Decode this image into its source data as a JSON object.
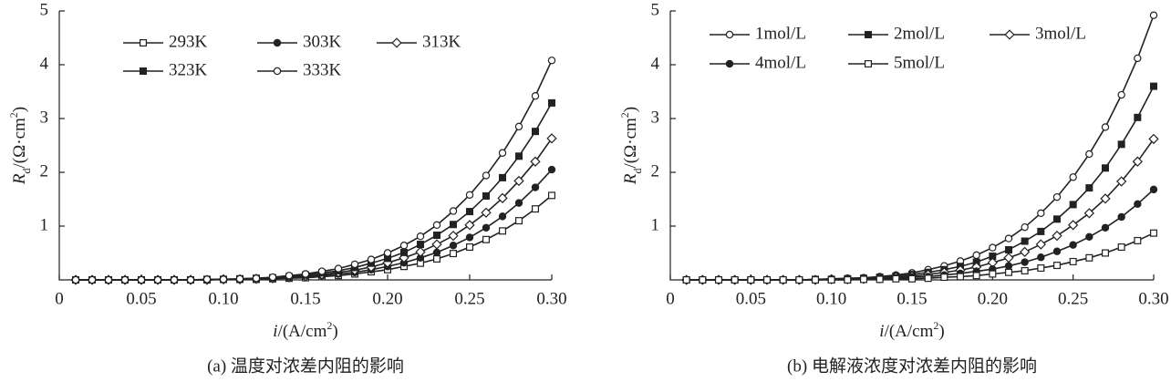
{
  "chart_data": [
    {
      "type": "line",
      "caption": "(a) 温度对浓差内阻的影响",
      "xlabel": [
        "i",
        "/(A/cm",
        "2",
        ")"
      ],
      "ylabel": [
        "R",
        "d",
        "/(Ω·cm",
        "2",
        ")"
      ],
      "x": [
        0.01,
        0.02,
        0.03,
        0.04,
        0.05,
        0.06,
        0.07,
        0.08,
        0.09,
        0.1,
        0.11,
        0.12,
        0.13,
        0.14,
        0.15,
        0.16,
        0.17,
        0.18,
        0.19,
        0.2,
        0.21,
        0.22,
        0.23,
        0.24,
        0.25,
        0.26,
        0.27,
        0.28,
        0.29,
        0.3
      ],
      "xlim": [
        0,
        0.3
      ],
      "xticks": [
        0,
        0.05,
        {
          "value": 0.1,
          "label": "0.10"
        },
        0.15,
        {
          "value": 0.2,
          "label": "0.20"
        },
        0.25,
        {
          "value": 0.3,
          "label": "0.30"
        }
      ],
      "ylim": [
        0,
        5
      ],
      "yticks": [
        1,
        2,
        3,
        4,
        5
      ],
      "legend_columns": 3,
      "series": [
        {
          "name": "293K",
          "color": "#222222",
          "marker": "square",
          "filled": false,
          "values": [
            0,
            0,
            0,
            0,
            0,
            0,
            0,
            0,
            0,
            0.01,
            0.01,
            0.01,
            0.02,
            0.03,
            0.04,
            0.06,
            0.08,
            0.11,
            0.15,
            0.19,
            0.25,
            0.31,
            0.39,
            0.49,
            0.61,
            0.75,
            0.91,
            1.1,
            1.32,
            1.57
          ]
        },
        {
          "name": "303K",
          "color": "#222222",
          "marker": "circle",
          "filled": true,
          "values": [
            0,
            0,
            0,
            0,
            0,
            0,
            0,
            0,
            0,
            0.01,
            0.01,
            0.02,
            0.03,
            0.04,
            0.06,
            0.08,
            0.11,
            0.14,
            0.19,
            0.25,
            0.32,
            0.41,
            0.51,
            0.64,
            0.79,
            0.97,
            1.18,
            1.43,
            1.72,
            2.05
          ]
        },
        {
          "name": "313K",
          "color": "#222222",
          "marker": "diamond",
          "filled": false,
          "values": [
            0,
            0,
            0,
            0,
            0,
            0,
            0,
            0,
            0,
            0.01,
            0.01,
            0.02,
            0.03,
            0.05,
            0.07,
            0.1,
            0.14,
            0.18,
            0.24,
            0.32,
            0.41,
            0.52,
            0.66,
            0.82,
            1.02,
            1.25,
            1.52,
            1.84,
            2.2,
            2.63
          ]
        },
        {
          "name": "323K",
          "color": "#222222",
          "marker": "square",
          "filled": true,
          "values": [
            0,
            0,
            0,
            0,
            0,
            0,
            0,
            0,
            0.01,
            0.01,
            0.02,
            0.03,
            0.04,
            0.06,
            0.09,
            0.13,
            0.17,
            0.23,
            0.31,
            0.4,
            0.51,
            0.66,
            0.83,
            1.03,
            1.27,
            1.56,
            1.9,
            2.3,
            2.76,
            3.29
          ]
        },
        {
          "name": "333K",
          "color": "#222222",
          "marker": "circle",
          "filled": false,
          "values": [
            0,
            0,
            0,
            0,
            0,
            0,
            0,
            0,
            0.01,
            0.01,
            0.02,
            0.03,
            0.05,
            0.08,
            0.11,
            0.16,
            0.21,
            0.29,
            0.38,
            0.5,
            0.64,
            0.81,
            1.02,
            1.28,
            1.58,
            1.94,
            2.36,
            2.85,
            3.42,
            4.08
          ]
        }
      ]
    },
    {
      "type": "line",
      "caption": "(b) 电解液浓度对浓差内阻的影响",
      "xlabel": [
        "i",
        "/(A/cm",
        "2",
        ")"
      ],
      "ylabel": [
        "R",
        "d",
        "/(Ω·cm",
        "2",
        ")"
      ],
      "x": [
        0.01,
        0.02,
        0.03,
        0.04,
        0.05,
        0.06,
        0.07,
        0.08,
        0.09,
        0.1,
        0.11,
        0.12,
        0.13,
        0.14,
        0.15,
        0.16,
        0.17,
        0.18,
        0.19,
        0.2,
        0.21,
        0.22,
        0.23,
        0.24,
        0.25,
        0.26,
        0.27,
        0.28,
        0.29,
        0.3
      ],
      "xlim": [
        0,
        0.3
      ],
      "xticks": [
        0,
        0.05,
        {
          "value": 0.1,
          "label": "0.10"
        },
        0.15,
        {
          "value": 0.2,
          "label": "0.20"
        },
        0.25,
        {
          "value": 0.3,
          "label": "0.30"
        }
      ],
      "ylim": [
        0,
        5
      ],
      "yticks": [
        1,
        2,
        3,
        4,
        5
      ],
      "legend_columns": 3,
      "series": [
        {
          "name": "1mol/L",
          "color": "#222222",
          "marker": "circle",
          "filled": false,
          "values": [
            0,
            0,
            0,
            0,
            0,
            0,
            0,
            0,
            0.01,
            0.02,
            0.03,
            0.04,
            0.06,
            0.09,
            0.13,
            0.19,
            0.26,
            0.35,
            0.46,
            0.6,
            0.77,
            0.98,
            1.24,
            1.54,
            1.91,
            2.34,
            2.84,
            3.44,
            4.12,
            4.92
          ]
        },
        {
          "name": "2mol/L",
          "color": "#222222",
          "marker": "square",
          "filled": true,
          "values": [
            0,
            0,
            0,
            0,
            0,
            0,
            0,
            0,
            0.01,
            0.01,
            0.02,
            0.03,
            0.05,
            0.07,
            0.1,
            0.14,
            0.19,
            0.25,
            0.33,
            0.44,
            0.56,
            0.72,
            0.9,
            1.13,
            1.4,
            1.71,
            2.08,
            2.52,
            3.02,
            3.6
          ]
        },
        {
          "name": "3mol/L",
          "color": "#222222",
          "marker": "diamond",
          "filled": false,
          "values": [
            0,
            0,
            0,
            0,
            0,
            0,
            0,
            0,
            0,
            0.01,
            0.01,
            0.02,
            0.03,
            0.05,
            0.07,
            0.1,
            0.14,
            0.18,
            0.24,
            0.32,
            0.41,
            0.52,
            0.66,
            0.82,
            1.02,
            1.24,
            1.51,
            1.83,
            2.2,
            2.62
          ]
        },
        {
          "name": "4mol/L",
          "color": "#222222",
          "marker": "circle",
          "filled": true,
          "values": [
            0,
            0,
            0,
            0,
            0,
            0,
            0,
            0,
            0,
            0.01,
            0.01,
            0.01,
            0.02,
            0.03,
            0.05,
            0.06,
            0.09,
            0.12,
            0.16,
            0.2,
            0.26,
            0.33,
            0.42,
            0.53,
            0.65,
            0.8,
            0.97,
            1.17,
            1.41,
            1.68
          ]
        },
        {
          "name": "5mol/L",
          "color": "#222222",
          "marker": "square",
          "filled": false,
          "values": [
            0,
            0,
            0,
            0,
            0,
            0,
            0,
            0,
            0,
            0,
            0,
            0.01,
            0.01,
            0.02,
            0.02,
            0.03,
            0.05,
            0.06,
            0.08,
            0.11,
            0.14,
            0.17,
            0.22,
            0.27,
            0.34,
            0.41,
            0.5,
            0.61,
            0.73,
            0.87
          ]
        }
      ]
    }
  ]
}
